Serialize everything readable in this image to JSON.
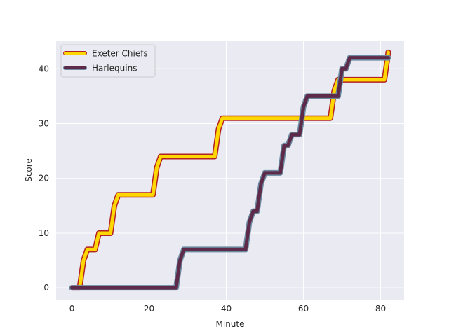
{
  "chart_data": {
    "type": "line",
    "title": "",
    "xlabel": "Minute",
    "ylabel": "Score",
    "xlim": [
      -4.1,
      86.1
    ],
    "ylim": [
      -2.15,
      45.15
    ],
    "xticks": [
      0,
      20,
      40,
      60,
      80
    ],
    "yticks": [
      0,
      10,
      20,
      30,
      40
    ],
    "grid": true,
    "legend_position": "top-left",
    "background": "#eaeaf2",
    "series": [
      {
        "name": "Exeter Chiefs",
        "line_color": "#ffd700",
        "edge_color": "#b22222",
        "points": [
          [
            0,
            0
          ],
          [
            2,
            0
          ],
          [
            3,
            5
          ],
          [
            4,
            7
          ],
          [
            6,
            7
          ],
          [
            7,
            10
          ],
          [
            10,
            10
          ],
          [
            11,
            15
          ],
          [
            12,
            17
          ],
          [
            21,
            17
          ],
          [
            22,
            22
          ],
          [
            23,
            24
          ],
          [
            37,
            24
          ],
          [
            38,
            29
          ],
          [
            39,
            31
          ],
          [
            67,
            31
          ],
          [
            68,
            36
          ],
          [
            69,
            38
          ],
          [
            81,
            38
          ],
          [
            82,
            43
          ]
        ]
      },
      {
        "name": "Harlequins",
        "line_color": "#5e2a4a",
        "edge_color": "#6b8aa0",
        "points": [
          [
            0,
            0
          ],
          [
            27,
            0
          ],
          [
            28,
            5
          ],
          [
            29,
            7
          ],
          [
            45,
            7
          ],
          [
            46,
            12
          ],
          [
            47,
            14
          ],
          [
            48,
            14
          ],
          [
            49,
            19
          ],
          [
            50,
            21
          ],
          [
            54,
            21
          ],
          [
            55,
            26
          ],
          [
            56,
            26
          ],
          [
            57,
            28
          ],
          [
            59,
            28
          ],
          [
            60,
            33
          ],
          [
            61,
            35
          ],
          [
            69,
            35
          ],
          [
            70,
            40
          ],
          [
            71,
            40
          ],
          [
            72,
            42
          ],
          [
            82,
            42
          ]
        ]
      }
    ]
  }
}
